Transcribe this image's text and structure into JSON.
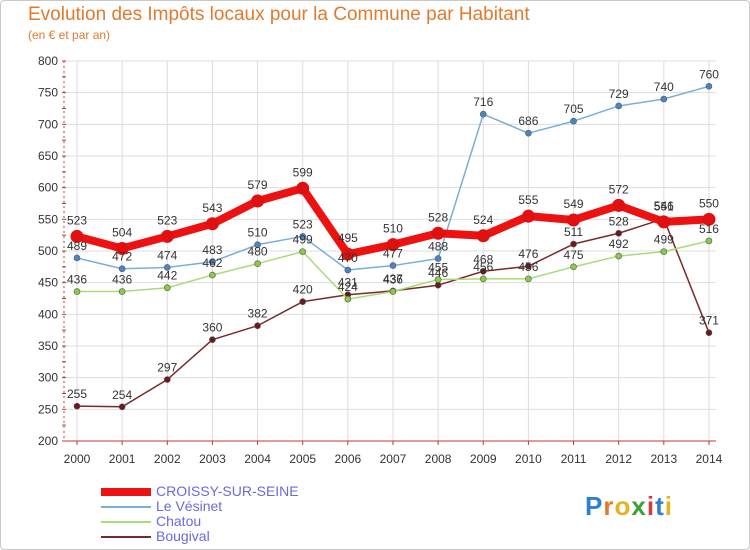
{
  "title": "Evolution des Impôts locaux pour la Commune par Habitant",
  "subtitle": "(en € et par an)",
  "brand": "Proxiti",
  "colors": {
    "title": "#e07a2e",
    "axis": "#c0392b",
    "grid": "#dddddd",
    "legend_text": "#6a6adc"
  },
  "chart_data": {
    "type": "line",
    "title": "Evolution des Impôts locaux pour la Commune par Habitant",
    "subtitle": "(en € et par an)",
    "xlabel": "",
    "ylabel": "",
    "x": [
      "2000",
      "2001",
      "2002",
      "2003",
      "2004",
      "2005",
      "2006",
      "2007",
      "2008",
      "2009",
      "2010",
      "2011",
      "2012",
      "2013",
      "2014"
    ],
    "ylim": [
      200,
      800
    ],
    "yticks": [
      200,
      250,
      300,
      350,
      400,
      450,
      500,
      550,
      600,
      650,
      700,
      750,
      800
    ],
    "grid": true,
    "legend_position": "bottom-left",
    "series": [
      {
        "name": "CROISSY-SUR-SEINE",
        "color": "#ee1111",
        "marker": "#e01010",
        "width": 8,
        "values": [
          523,
          504,
          523,
          543,
          579,
          599,
          495,
          510,
          528,
          524,
          555,
          549,
          572,
          546,
          550
        ],
        "labels": [
          "523",
          "504",
          "523",
          "543",
          "579",
          "599",
          "495",
          "510",
          "528",
          "524",
          "555",
          "549",
          "572",
          "546",
          "550"
        ]
      },
      {
        "name": "Le Vésinet",
        "color": "#7aaed6",
        "marker": "#4a86c6",
        "width": 1.5,
        "values": [
          489,
          472,
          474,
          483,
          510,
          523,
          470,
          477,
          488,
          716,
          686,
          705,
          729,
          740,
          760
        ],
        "labels": [
          "489",
          "472",
          "474",
          "483",
          "510",
          "523",
          "470",
          "477",
          "488",
          "716",
          "686",
          "705",
          "729",
          "740",
          "760"
        ]
      },
      {
        "name": "Chatou",
        "color": "#a8dc78",
        "marker": "#88cc44",
        "width": 1.5,
        "values": [
          436,
          436,
          442,
          462,
          480,
          499,
          424,
          436,
          455,
          456,
          456,
          475,
          492,
          499,
          516
        ],
        "labels": [
          "436",
          "436",
          "442",
          "462",
          "480",
          "499",
          "424",
          "436",
          "455",
          "456",
          "456",
          "475",
          "492",
          "499",
          "516"
        ]
      },
      {
        "name": "Bougival",
        "color": "#7a2a2a",
        "marker": "#6a1a1a",
        "width": 1.5,
        "values": [
          255,
          254,
          297,
          360,
          382,
          420,
          431,
          437,
          446,
          468,
          476,
          511,
          528,
          551,
          371
        ],
        "labels": [
          "255",
          "254",
          "297",
          "360",
          "382",
          "420",
          "431",
          "437",
          "446",
          "468",
          "476",
          "511",
          "528",
          "551",
          "371"
        ]
      }
    ]
  },
  "legend": {
    "items": [
      {
        "label": "CROISSY-SUR-SEINE"
      },
      {
        "label": "Le Vésinet"
      },
      {
        "label": "Chatou"
      },
      {
        "label": "Bougival"
      }
    ]
  }
}
